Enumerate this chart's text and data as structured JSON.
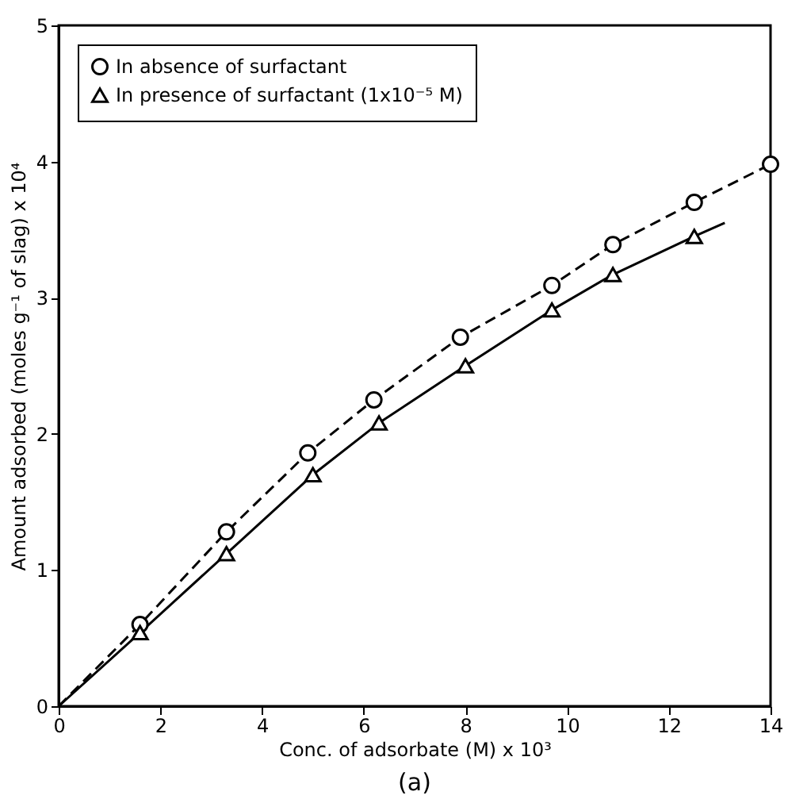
{
  "chart_data": {
    "type": "line",
    "xlabel": "Conc. of adsorbate (M) x 10³",
    "ylabel": "Amount adsorbed (moles g⁻¹ of slag) x 10⁴",
    "annotations": [
      "(a)"
    ],
    "xlim": [
      0,
      14
    ],
    "xticks": [
      0,
      2,
      4,
      6,
      8,
      10,
      12,
      14
    ],
    "ylim": [
      0,
      5
    ],
    "yticks": [
      0,
      1,
      2,
      3,
      4,
      5
    ],
    "grid": false,
    "legend": "top left",
    "series": [
      {
        "type": "scatter",
        "name": "In absence of surfactant",
        "color": "#000000",
        "marker": "circle",
        "x": [
          1.6,
          3.3,
          4.9,
          6.2,
          7.9,
          9.7,
          10.9,
          12.5,
          14
        ],
        "values": [
          0.6,
          1.28,
          1.86,
          2.25,
          2.71,
          3.09,
          3.39,
          3.7,
          3.98
        ]
      },
      {
        "type": "scatter",
        "name": "In presence of surfactant (1x10⁻⁵ M)",
        "color": "#000000",
        "marker": "triangle",
        "x": [
          1.6,
          3.3,
          5.0,
          6.3,
          8.0,
          9.7,
          10.9,
          12.5
        ],
        "values": [
          0.54,
          1.12,
          1.7,
          2.08,
          2.5,
          2.91,
          3.17,
          3.45
        ]
      },
      {
        "color": "#000000",
        "line_style": "dashed",
        "x": [
          0,
          1.6,
          3.3,
          4.9,
          6.2,
          7.9,
          9.7,
          10.9,
          12.5,
          14
        ],
        "values": [
          0,
          0.6,
          1.28,
          1.86,
          2.25,
          2.71,
          3.09,
          3.39,
          3.7,
          3.98
        ]
      },
      {
        "color": "#000000",
        "line_style": "solid",
        "x": [
          0,
          1.6,
          3.3,
          5.0,
          6.3,
          8.0,
          9.7,
          10.9,
          12.5,
          13.1
        ],
        "values": [
          0,
          0.54,
          1.12,
          1.7,
          2.08,
          2.5,
          2.91,
          3.17,
          3.45,
          3.55
        ]
      }
    ]
  }
}
